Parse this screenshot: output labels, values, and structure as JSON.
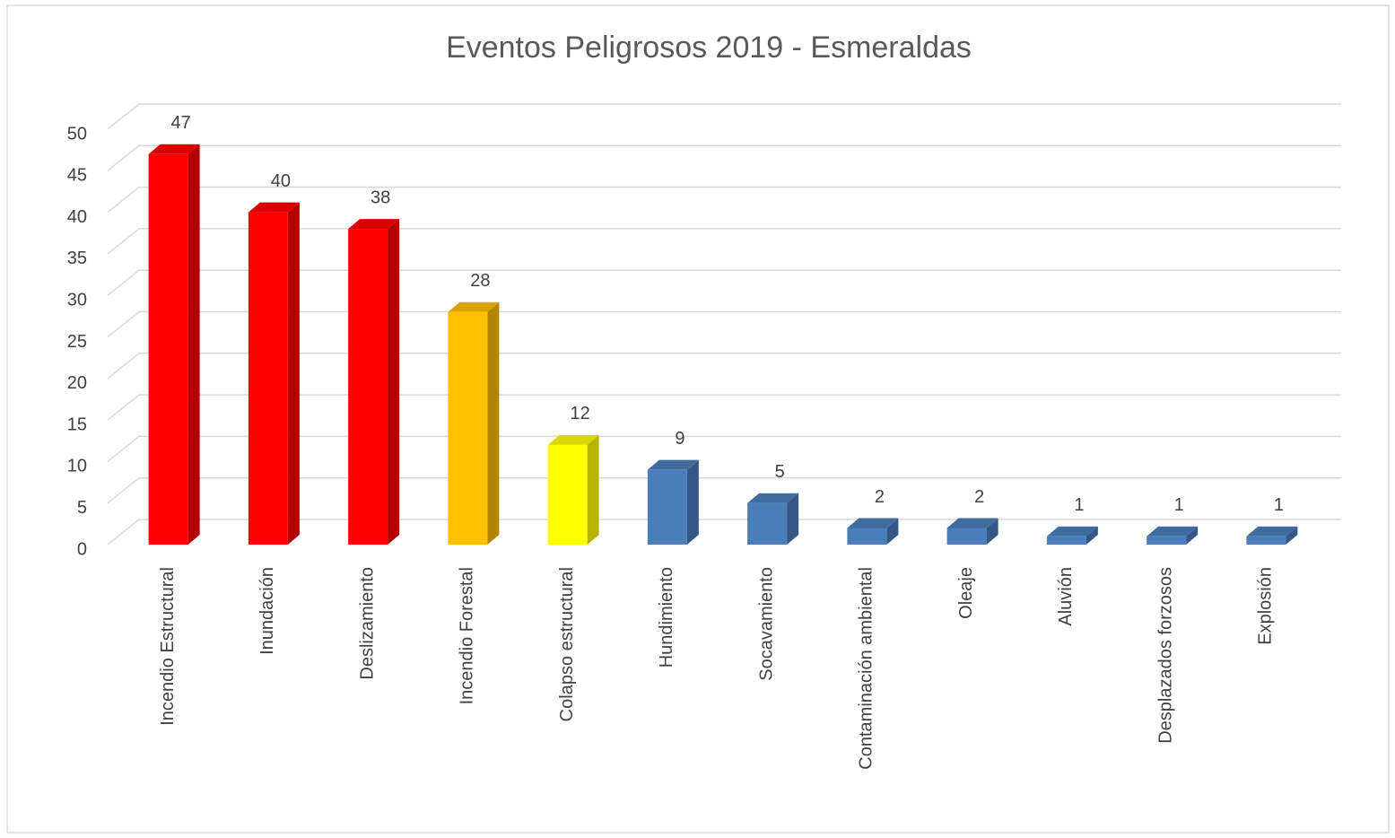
{
  "chart_data": {
    "type": "bar",
    "title": "Eventos Peligrosos 2019 - Esmeraldas",
    "categories": [
      "Incendio Estructural",
      "Inundación",
      "Deslizamiento",
      "Incendio Forestal",
      "Colapso estructural",
      "Hundimiento",
      "Socavamiento",
      "Contaminación ambiental",
      "Oleaje",
      "Aluvión",
      "Desplazados forzosos",
      "Explosión"
    ],
    "values": [
      47,
      40,
      38,
      28,
      12,
      9,
      5,
      2,
      2,
      1,
      1,
      1
    ],
    "colors": [
      "#ff0000",
      "#ff0000",
      "#ff0000",
      "#ffc000",
      "#ffff00",
      "#4a7ebb",
      "#4a7ebb",
      "#4a7ebb",
      "#4a7ebb",
      "#4a7ebb",
      "#4a7ebb",
      "#4a7ebb"
    ],
    "ylim": [
      0,
      50
    ],
    "yticks": [
      0,
      5,
      10,
      15,
      20,
      25,
      30,
      35,
      40,
      45,
      50
    ],
    "grid": true
  }
}
